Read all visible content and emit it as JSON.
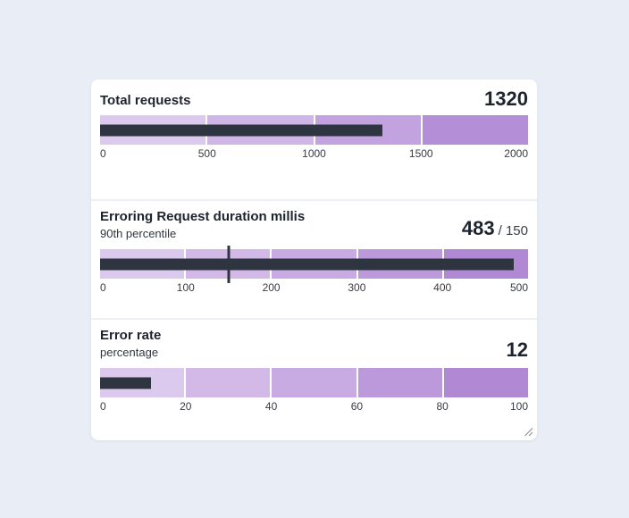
{
  "colors": {
    "page_background": "#e9edf5",
    "card_background": "#ffffff",
    "divider": "#eef0f5",
    "bar": "#2e3440",
    "target_marker": "#2e3440",
    "title_text": "#1e242e",
    "tick_text": "#373c44"
  },
  "icons": {
    "resize_handle": "diagonal-resize-grip"
  },
  "chart_data": [
    {
      "type": "bullet",
      "title": "Total requests",
      "subtitle": "",
      "value": 1320,
      "value_label": "1320",
      "target": null,
      "target_label": "",
      "min": 0,
      "max": 2000,
      "ticks": [
        0,
        500,
        1000,
        1500,
        2000
      ],
      "bands": [
        {
          "from": 0,
          "to": 500,
          "color": "#dcc9ee"
        },
        {
          "from": 500,
          "to": 1000,
          "color": "#cfb6e7"
        },
        {
          "from": 1000,
          "to": 1500,
          "color": "#c3a3df"
        },
        {
          "from": 1500,
          "to": 2000,
          "color": "#b58ed8"
        }
      ]
    },
    {
      "type": "bullet",
      "title": "Erroring Request duration millis",
      "subtitle": "90th percentile",
      "value": 483,
      "value_label": "483",
      "target": 150,
      "target_label": "/ 150",
      "min": 0,
      "max": 500,
      "ticks": [
        0,
        100,
        200,
        300,
        400,
        500
      ],
      "bands": [
        {
          "from": 0,
          "to": 100,
          "color": "#dcc9ee"
        },
        {
          "from": 100,
          "to": 200,
          "color": "#d2b9e8"
        },
        {
          "from": 200,
          "to": 300,
          "color": "#c8abe2"
        },
        {
          "from": 300,
          "to": 400,
          "color": "#bc99db"
        },
        {
          "from": 400,
          "to": 500,
          "color": "#b088d4"
        }
      ]
    },
    {
      "type": "bullet",
      "title": "Error rate",
      "subtitle": "percentage",
      "value": 12,
      "value_label": "12",
      "target": null,
      "target_label": "",
      "min": 0,
      "max": 100,
      "ticks": [
        0,
        20,
        40,
        60,
        80,
        100
      ],
      "bands": [
        {
          "from": 0,
          "to": 20,
          "color": "#dcc9ee"
        },
        {
          "from": 20,
          "to": 40,
          "color": "#d2b9e8"
        },
        {
          "from": 40,
          "to": 60,
          "color": "#c8abe2"
        },
        {
          "from": 60,
          "to": 80,
          "color": "#bc99db"
        },
        {
          "from": 80,
          "to": 100,
          "color": "#b088d4"
        }
      ]
    }
  ]
}
